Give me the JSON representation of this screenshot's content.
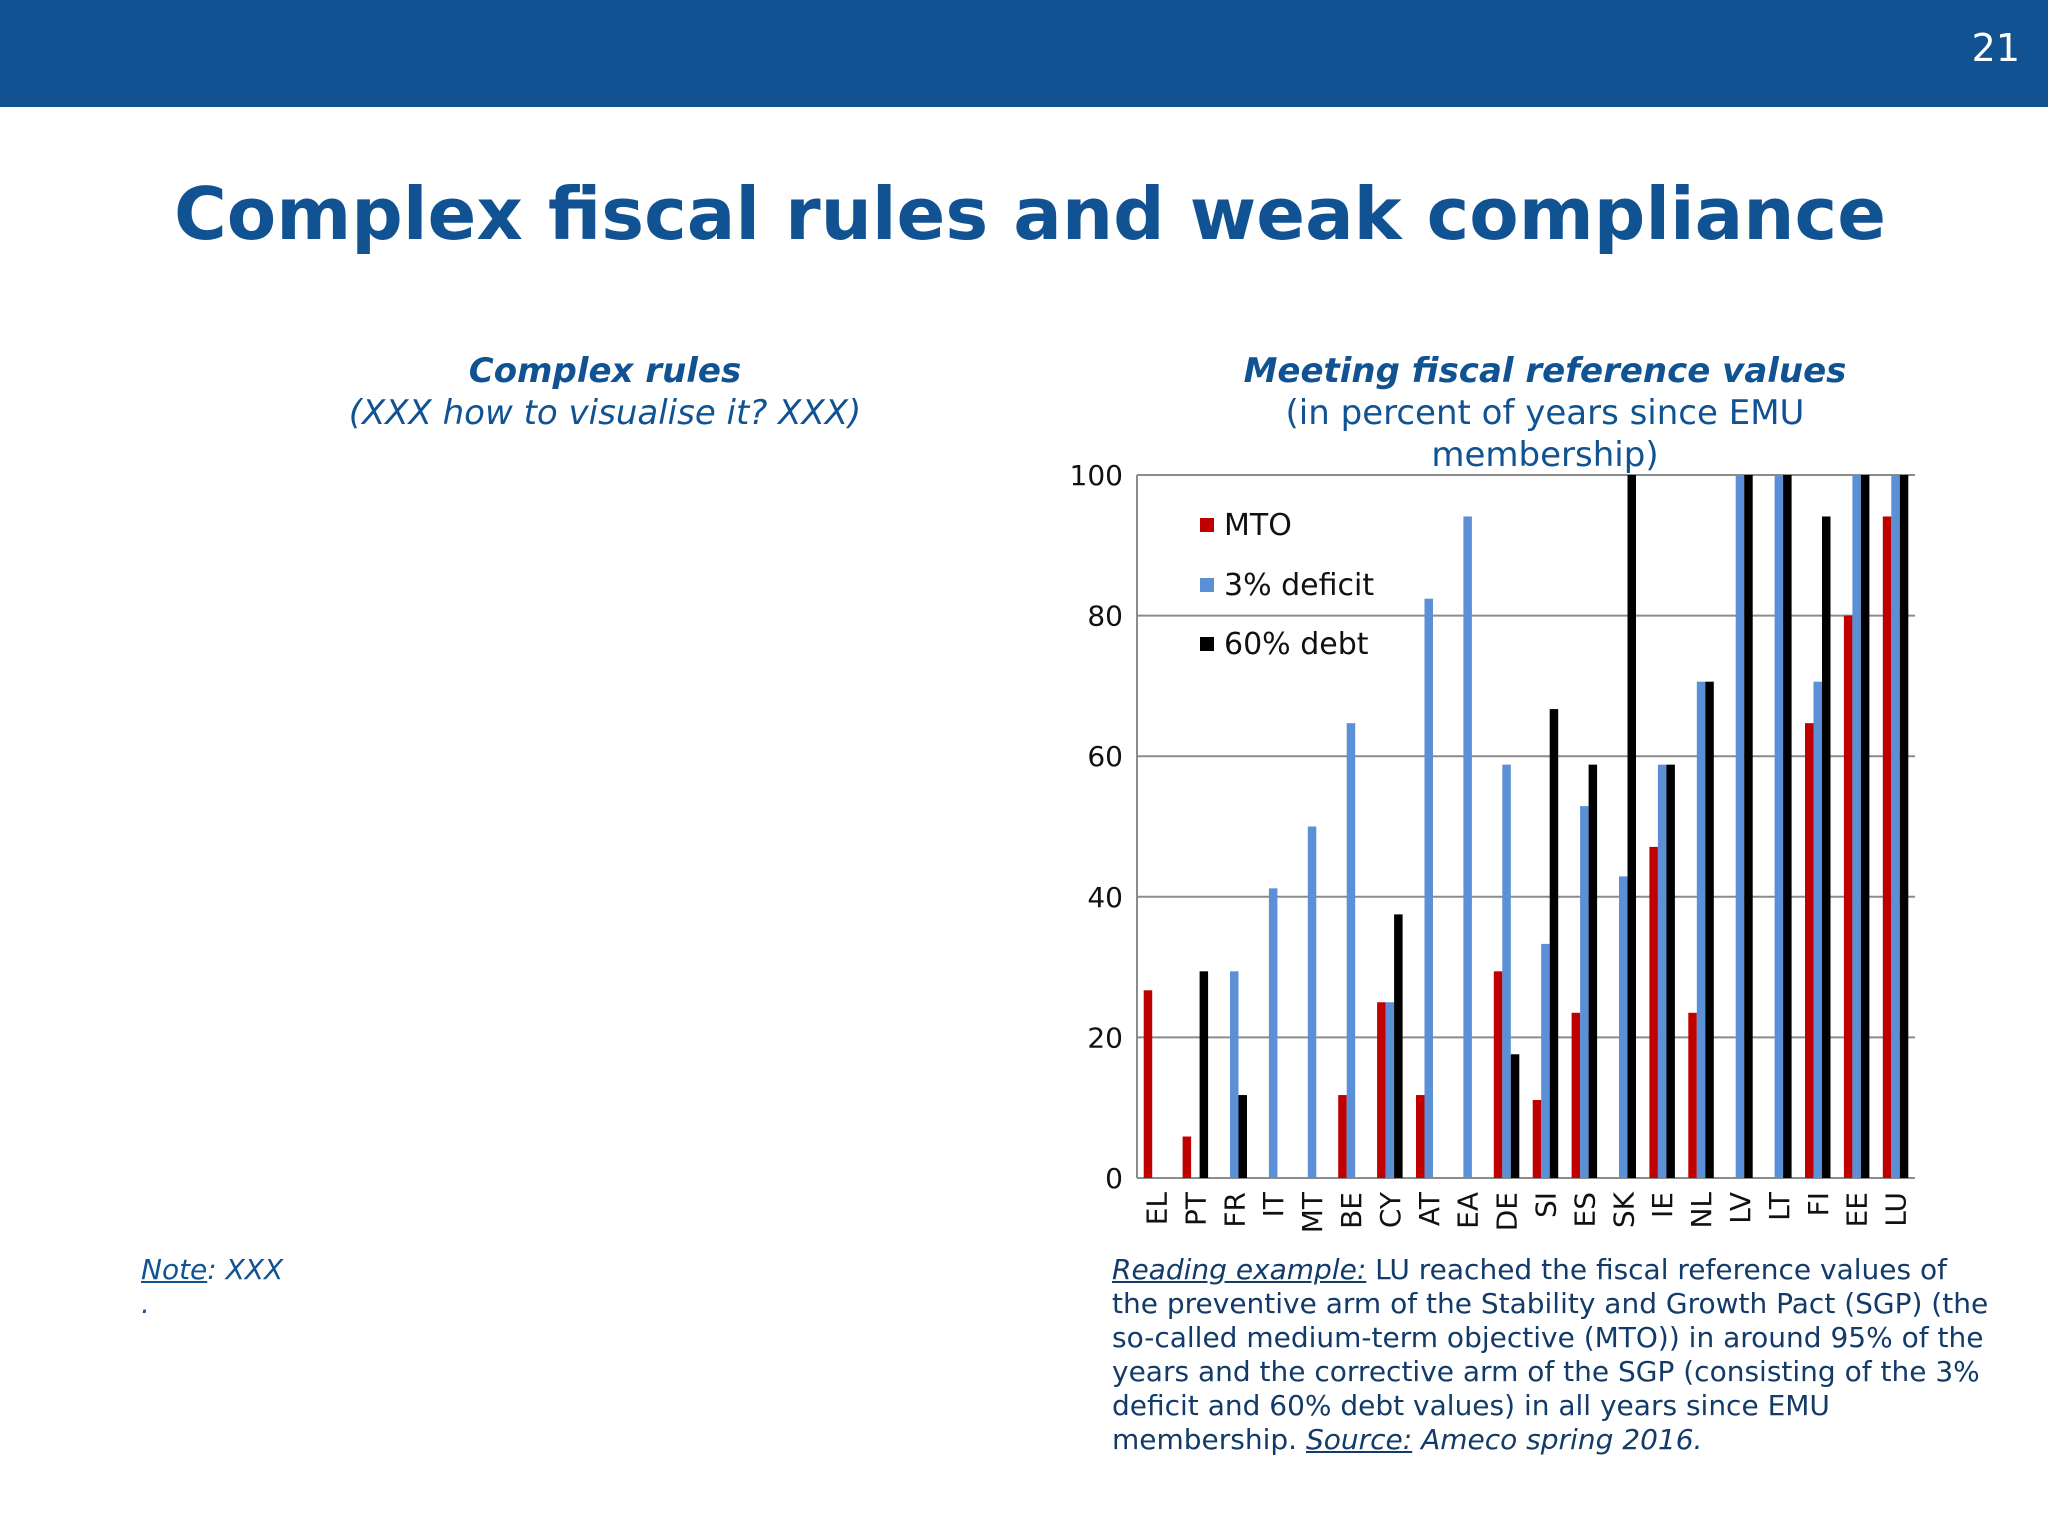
{
  "page": {
    "number": "21"
  },
  "title": "Complex fiscal rules and weak compliance",
  "left_panel": {
    "title": "Complex rules",
    "subtitle": "(XXX how to visualise it? XXX)",
    "note_label": "Note",
    "note_text": ": XXX",
    "note_dot": "."
  },
  "right_panel": {
    "title": "Meeting fiscal reference values",
    "subtitle": "(in percent of years since EMU membership)",
    "reading_label": "Reading example:",
    "reading_text": " LU reached the fiscal reference values of the preventive arm of the Stability and Growth Pact (SGP) (the so-called medium-term objective (MTO)) in around 95% of the years and the corrective arm of the SGP (consisting of the 3% deficit and 60% debt values) in all years since EMU membership. ",
    "source_label": "Source:",
    "source_text": " Ameco spring 2016."
  },
  "colors": {
    "brand": "#115292",
    "mto": "#c00000",
    "deficit": "#5b8fd6",
    "debt": "#000000"
  },
  "chart_data": {
    "type": "bar",
    "categories": [
      "EL",
      "PT",
      "FR",
      "IT",
      "MT",
      "BE",
      "CY",
      "AT",
      "EA",
      "DE",
      "SI",
      "ES",
      "SK",
      "IE",
      "NL",
      "LV",
      "LT",
      "FI",
      "EE",
      "LU"
    ],
    "series": [
      {
        "name": "MTO",
        "color": "#c00000",
        "values": [
          26.7,
          5.9,
          0,
          0,
          0,
          11.8,
          25,
          11.8,
          0,
          29.4,
          11.1,
          23.5,
          0,
          47.1,
          23.5,
          0,
          0,
          64.7,
          80,
          94.1
        ]
      },
      {
        "name": "3% deficit",
        "color": "#5b8fd6",
        "values": [
          0,
          0,
          29.4,
          41.2,
          50,
          64.7,
          25,
          82.4,
          94.1,
          58.8,
          33.3,
          52.9,
          42.9,
          58.8,
          70.6,
          100,
          100,
          70.6,
          100,
          100
        ]
      },
      {
        "name": "60% debt",
        "color": "#000000",
        "values": [
          0,
          29.4,
          11.8,
          0,
          0,
          0,
          37.5,
          0,
          0,
          17.6,
          66.7,
          58.8,
          100,
          58.8,
          70.6,
          100,
          100,
          94.1,
          100,
          100
        ]
      }
    ],
    "ylim": [
      0,
      100
    ],
    "yticks": [
      0,
      20,
      40,
      60,
      80,
      100
    ],
    "xlabel": "",
    "ylabel": "",
    "grid": true,
    "legend_position": "top-left"
  }
}
